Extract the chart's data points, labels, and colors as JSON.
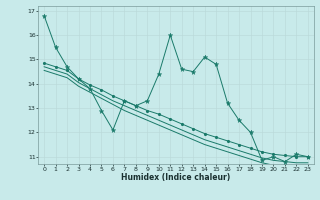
{
  "xlabel": "Humidex (Indice chaleur)",
  "background_color": "#c8eaea",
  "grid_color": "#b8d8d8",
  "line_color": "#1a7a6a",
  "xlim": [
    -0.5,
    23.5
  ],
  "ylim": [
    10.7,
    17.2
  ],
  "yticks": [
    11,
    12,
    13,
    14,
    15,
    16,
    17
  ],
  "xticks": [
    0,
    1,
    2,
    3,
    4,
    5,
    6,
    7,
    8,
    9,
    10,
    11,
    12,
    13,
    14,
    15,
    16,
    17,
    18,
    19,
    20,
    21,
    22,
    23
  ],
  "line1_x": [
    0,
    1,
    2,
    3,
    4,
    5,
    6,
    7,
    8,
    9,
    10,
    11,
    12,
    13,
    14,
    15,
    16,
    17,
    18,
    19,
    20,
    21,
    22,
    23
  ],
  "line1_y": [
    16.8,
    15.5,
    14.7,
    14.2,
    13.8,
    12.9,
    12.1,
    13.3,
    13.1,
    13.3,
    14.4,
    16.0,
    14.6,
    14.5,
    15.1,
    14.8,
    13.2,
    12.5,
    12.0,
    10.85,
    11.0,
    10.8,
    11.1,
    11.0
  ],
  "line2_x": [
    0,
    1,
    2,
    3,
    4,
    5,
    6,
    7,
    8,
    9,
    10,
    11,
    12,
    13,
    14,
    15,
    16,
    17,
    18,
    19,
    20,
    21,
    22,
    23
  ],
  "line2_y": [
    14.85,
    14.7,
    14.55,
    14.2,
    13.95,
    13.75,
    13.5,
    13.3,
    13.1,
    12.9,
    12.75,
    12.55,
    12.35,
    12.15,
    11.95,
    11.8,
    11.65,
    11.5,
    11.35,
    11.2,
    11.1,
    11.05,
    11.0,
    11.0
  ],
  "line3_x": [
    0,
    1,
    2,
    3,
    4,
    5,
    6,
    7,
    8,
    9,
    10,
    11,
    12,
    13,
    14,
    15,
    16,
    17,
    18,
    19,
    20,
    21,
    22,
    23
  ],
  "line3_y": [
    14.7,
    14.55,
    14.4,
    14.05,
    13.8,
    13.55,
    13.3,
    13.1,
    12.9,
    12.7,
    12.5,
    12.3,
    12.1,
    11.9,
    11.7,
    11.55,
    11.4,
    11.25,
    11.1,
    10.95,
    10.85,
    10.8,
    10.75,
    10.75
  ],
  "line4_x": [
    0,
    1,
    2,
    3,
    4,
    5,
    6,
    7,
    8,
    9,
    10,
    11,
    12,
    13,
    14,
    15,
    16,
    17,
    18,
    19,
    20,
    21,
    22,
    23
  ],
  "line4_y": [
    14.55,
    14.4,
    14.25,
    13.9,
    13.65,
    13.4,
    13.15,
    12.9,
    12.7,
    12.5,
    12.3,
    12.1,
    11.9,
    11.7,
    11.5,
    11.35,
    11.2,
    11.05,
    10.9,
    10.75,
    10.65,
    10.6,
    10.55,
    10.55
  ]
}
